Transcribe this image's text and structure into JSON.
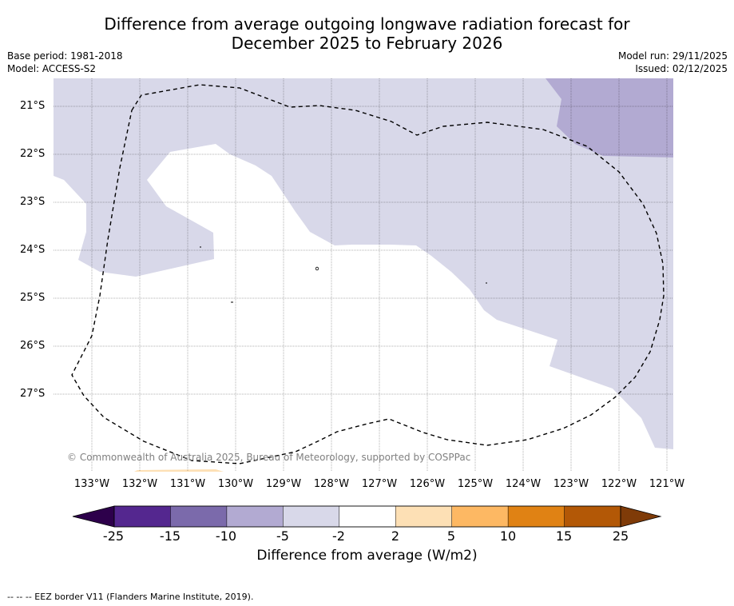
{
  "header": {
    "title_line1": "Difference from average outgoing longwave radiation forecast for",
    "title_line2": "December 2025 to February 2026",
    "base_period": "Base period: 1981-2018",
    "model": "Model: ACCESS-S2",
    "model_run": "Model run: 29/11/2025",
    "issued": "Issued: 02/12/2025"
  },
  "map": {
    "latitudes": [
      "21°S",
      "22°S",
      "23°S",
      "24°S",
      "25°S",
      "26°S",
      "27°S"
    ],
    "longitudes": [
      "133°W",
      "132°W",
      "131°W",
      "130°W",
      "129°W",
      "128°W",
      "127°W",
      "126°W",
      "125°W",
      "124°W",
      "123°W",
      "122°W",
      "121°W"
    ],
    "copyright": "© Commonwealth of Australia 2025, Bureau of Meteorology, supported by COSPPac",
    "colors": {
      "light_purple": "#d8d8e9",
      "mid_purple": "#b2aad2",
      "light_orange": "#fde0b5",
      "eez_line": "#000000"
    }
  },
  "colorbar": {
    "ticks": [
      "-25",
      "-15",
      "-10",
      "-5",
      "-2",
      "2",
      "5",
      "10",
      "15",
      "25"
    ],
    "colors": [
      "#54278f",
      "#7b6aab",
      "#b2aad2",
      "#d8d8e9",
      "#ffffff",
      "#fde0b5",
      "#fdb863",
      "#e08214",
      "#b35806"
    ],
    "under_color": "#2d004b",
    "over_color": "#7f3b08",
    "label": "Difference from average (W/m2)"
  },
  "footer": {
    "legend_text": "--  --  -- EEZ border V11 (Flanders Marine Institute, 2019)."
  }
}
